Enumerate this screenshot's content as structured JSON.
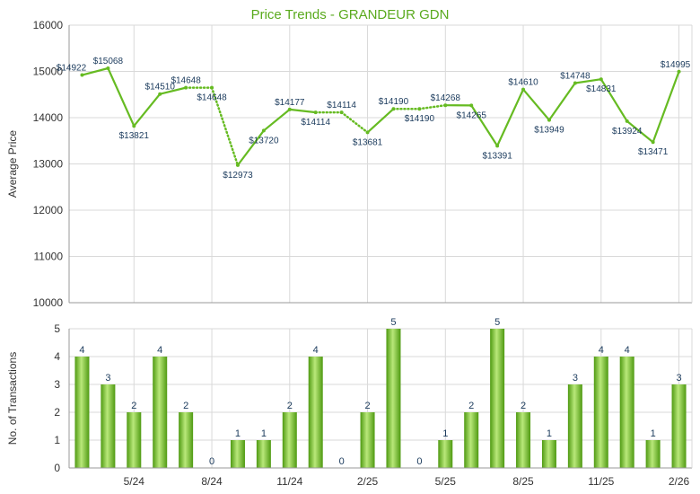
{
  "title": "Price Trends - GRANDEUR GDN",
  "colors": {
    "title": "#5aaa1e",
    "line": "#66bb22",
    "bar_dark": "#4f9a12",
    "bar_light": "#b9e87a",
    "grid": "#d9d9d9",
    "axis": "#999999",
    "label": "#1a3a5c"
  },
  "chart_data": [
    {
      "type": "line",
      "title": "Price Trends - GRANDEUR GDN",
      "ylabel": "Average Price",
      "ylim": [
        10000,
        16000
      ],
      "yticks": [
        10000,
        11000,
        12000,
        13000,
        14000,
        15000,
        16000
      ],
      "grid": true,
      "x_tick_labels": [
        "5/24",
        "8/24",
        "11/24",
        "2/25",
        "5/25",
        "8/25",
        "11/25",
        "2/26"
      ],
      "x_tick_indices": [
        2,
        5,
        8,
        11,
        14,
        17,
        20,
        23
      ],
      "series": [
        {
          "values": [
            14922,
            15068,
            13821,
            14510,
            14648,
            14648,
            12973,
            13720,
            14177,
            14114,
            14114,
            13681,
            14190,
            14190,
            14268,
            14265,
            13391,
            14610,
            13949,
            14748,
            14831,
            13924,
            13471,
            14995
          ],
          "labels": [
            "$14922",
            "$15068",
            "$13821",
            "$14510",
            "$14648",
            "$14648",
            "$12973",
            "$13720",
            "$14177",
            "$14114",
            "$14114",
            "$13681",
            "$14190",
            "$14190",
            "$14268",
            "$14265",
            "$13391",
            "$14610",
            "$13949",
            "$14748",
            "$14831",
            "$13924",
            "$13471",
            "$14995"
          ],
          "interpolated": [
            false,
            false,
            false,
            false,
            false,
            true,
            false,
            false,
            false,
            false,
            true,
            false,
            false,
            true,
            false,
            false,
            false,
            false,
            false,
            false,
            false,
            false,
            false,
            false
          ]
        }
      ]
    },
    {
      "type": "bar",
      "ylabel": "No. of Transactions",
      "ylim": [
        0,
        5
      ],
      "yticks": [
        0,
        1,
        2,
        3,
        4,
        5
      ],
      "grid": true,
      "x_tick_labels": [
        "5/24",
        "8/24",
        "11/24",
        "2/25",
        "5/25",
        "8/25",
        "11/25",
        "2/26"
      ],
      "values": [
        4,
        3,
        2,
        4,
        2,
        0,
        1,
        1,
        2,
        4,
        0,
        2,
        5,
        0,
        1,
        2,
        5,
        2,
        1,
        3,
        4,
        4,
        1,
        3
      ]
    }
  ]
}
